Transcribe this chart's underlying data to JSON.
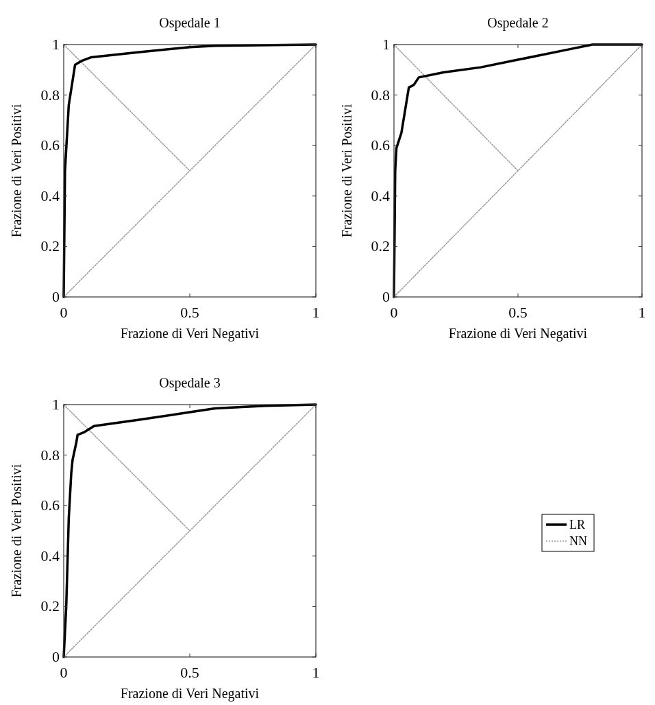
{
  "chart_data": [
    {
      "type": "line",
      "title": "Ospedale 1",
      "xlabel": "Frazione di Veri Negativi",
      "ylabel": "Frazione di Veri Positivi",
      "xlim": [
        0,
        1
      ],
      "ylim": [
        0,
        1
      ],
      "xticks": [
        0,
        0.5,
        1
      ],
      "yticks": [
        0,
        0.2,
        0.4,
        0.6,
        0.8,
        1
      ],
      "grid": false,
      "legend": false,
      "series": [
        {
          "color": "#9a9a9a",
          "line_style": "dotted",
          "x": [
            0,
            0.5,
            1
          ],
          "values": [
            0,
            0.5,
            1
          ]
        },
        {
          "color": "#9a9a9a",
          "line_style": "dotted",
          "x": [
            0,
            0.5
          ],
          "values": [
            1,
            0.5
          ]
        },
        {
          "color": "#000000",
          "line_style": "solid",
          "x": [
            0,
            0.005,
            0.02,
            0.045,
            0.07,
            0.11,
            0.3,
            0.5,
            0.6,
            1
          ],
          "values": [
            0,
            0.5,
            0.76,
            0.92,
            0.935,
            0.95,
            0.97,
            0.99,
            0.995,
            1
          ]
        }
      ]
    },
    {
      "type": "line",
      "title": "Ospedale 2",
      "xlabel": "Frazione di Veri Negativi",
      "ylabel": "Frazione di Veri Positivi",
      "xlim": [
        0,
        1
      ],
      "ylim": [
        0,
        1
      ],
      "xticks": [
        0,
        0.5,
        1
      ],
      "yticks": [
        0,
        0.2,
        0.4,
        0.6,
        0.8,
        1
      ],
      "grid": false,
      "legend": false,
      "series": [
        {
          "color": "#9a9a9a",
          "line_style": "dotted",
          "x": [
            0,
            0.5,
            1
          ],
          "values": [
            0,
            0.5,
            1
          ]
        },
        {
          "color": "#9a9a9a",
          "line_style": "dotted",
          "x": [
            0,
            0.5
          ],
          "values": [
            1,
            0.5
          ]
        },
        {
          "color": "#000000",
          "line_style": "solid",
          "x": [
            0,
            0.005,
            0.01,
            0.03,
            0.06,
            0.08,
            0.1,
            0.2,
            0.35,
            0.5,
            0.7,
            0.8,
            1
          ],
          "values": [
            0,
            0.5,
            0.59,
            0.65,
            0.83,
            0.84,
            0.87,
            0.89,
            0.91,
            0.94,
            0.98,
            1,
            1
          ]
        }
      ]
    },
    {
      "type": "line",
      "title": "Ospedale 3",
      "xlabel": "Frazione di Veri Negativi",
      "ylabel": "Frazione di Veri Positivi",
      "xlim": [
        0,
        1
      ],
      "ylim": [
        0,
        1
      ],
      "xticks": [
        0,
        0.5,
        1
      ],
      "yticks": [
        0,
        0.2,
        0.4,
        0.6,
        0.8,
        1
      ],
      "grid": false,
      "legend": "right",
      "series": [
        {
          "name": "NN",
          "color": "#9a9a9a",
          "line_style": "dotted",
          "x": [
            0,
            0.5,
            1
          ],
          "values": [
            0,
            0.5,
            1
          ]
        },
        {
          "color": "#9a9a9a",
          "line_style": "dotted",
          "x": [
            0,
            0.5
          ],
          "values": [
            1,
            0.5
          ]
        },
        {
          "name": "LR",
          "color": "#000000",
          "line_style": "solid",
          "x": [
            0,
            0.01,
            0.02,
            0.03,
            0.035,
            0.05,
            0.055,
            0.08,
            0.12,
            0.3,
            0.5,
            0.6,
            0.8,
            1
          ],
          "values": [
            0,
            0.2,
            0.55,
            0.73,
            0.78,
            0.85,
            0.88,
            0.89,
            0.915,
            0.94,
            0.97,
            0.985,
            0.995,
            1
          ]
        }
      ]
    }
  ]
}
